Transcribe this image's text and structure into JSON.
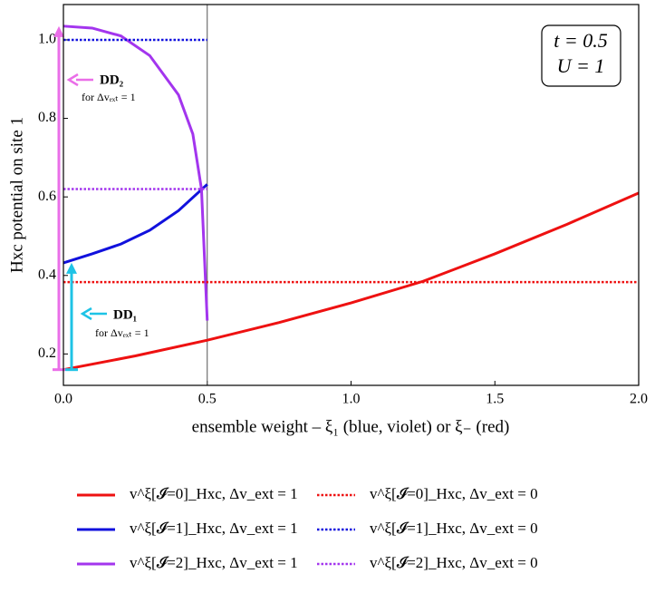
{
  "chart_data": {
    "type": "line",
    "xlabel": "ensemble weight – ξ₁ (blue, violet)  or  ξ₋ (red)",
    "ylabel": "Hxc potential on site 1",
    "xlim": [
      0,
      2
    ],
    "ylim": [
      0.12,
      1.09
    ],
    "xticks": [
      {
        "value": 0,
        "label": "0.0"
      },
      0.5,
      {
        "value": 1,
        "label": "1.0"
      },
      1.5,
      {
        "value": 2,
        "label": "2.0"
      }
    ],
    "yticks": [
      0.2,
      0.4,
      0.6,
      0.8,
      {
        "value": 1,
        "label": "1.0"
      }
    ],
    "vline": 0.5,
    "series": [
      {
        "name": "v^ξ[𝓘=0]_Hxc,  Δv_ext = 1",
        "color": "#ee1111",
        "linestyle": "solid",
        "x": [
          0,
          0.25,
          0.5,
          0.75,
          1.0,
          1.25,
          1.5,
          1.75,
          2.0
        ],
        "values": [
          0.16,
          0.195,
          0.235,
          0.28,
          0.33,
          0.385,
          0.455,
          0.53,
          0.61
        ]
      },
      {
        "name": "v^ξ[𝓘=1]_Hxc,  Δv_ext = 1",
        "color": "#1111dd",
        "linestyle": "solid",
        "x": [
          0,
          0.1,
          0.2,
          0.3,
          0.4,
          0.5
        ],
        "values": [
          0.432,
          0.455,
          0.48,
          0.515,
          0.565,
          0.632
        ]
      },
      {
        "name": "v^ξ[𝓘=2]_Hxc,  Δv_ext = 1",
        "color": "#a335ee",
        "linestyle": "solid",
        "x": [
          0,
          0.1,
          0.2,
          0.3,
          0.4,
          0.45,
          0.48,
          0.5
        ],
        "values": [
          1.035,
          1.03,
          1.01,
          0.96,
          0.86,
          0.76,
          0.62,
          0.285
        ]
      },
      {
        "name": "v^ξ[𝓘=0]_Hxc,  Δv_ext = 0",
        "color": "#ee1111",
        "linestyle": "dotted",
        "x": [
          0,
          2
        ],
        "values": [
          0.383,
          0.383
        ]
      },
      {
        "name": "v^ξ[𝓘=1]_Hxc,  Δv_ext = 0",
        "color": "#1111dd",
        "linestyle": "dotted",
        "x": [
          0,
          0.5
        ],
        "values": [
          1.0,
          1.0
        ]
      },
      {
        "name": "v^ξ[𝓘=2]_Hxc,  Δv_ext = 0",
        "color": "#a335ee",
        "linestyle": "dotted",
        "x": [
          0,
          0.5
        ],
        "values": [
          0.62,
          0.62
        ]
      }
    ],
    "annotations": {
      "dd2": {
        "label": "DD₂",
        "note": "for Δvₑₓₜ = 1",
        "color": "#ea6ee8"
      },
      "dd1": {
        "label": "DD₁",
        "note": "for Δvₑₓₜ = 1",
        "color": "#1ec3e6"
      },
      "box": [
        "t = 0.5",
        "U = 1"
      ]
    }
  }
}
